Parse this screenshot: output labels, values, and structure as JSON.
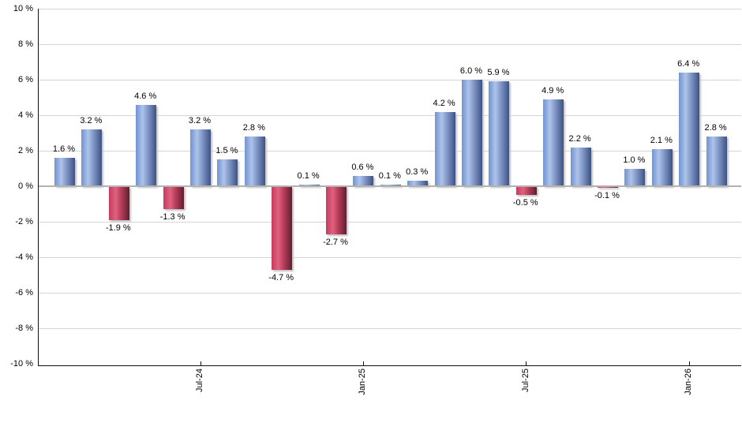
{
  "chart_data": {
    "type": "bar",
    "title": "",
    "unit": "%",
    "values": [
      1.6,
      3.2,
      -1.9,
      4.6,
      -1.3,
      3.2,
      1.5,
      2.8,
      -4.7,
      0.1,
      -2.7,
      0.6,
      0.1,
      0.3,
      4.2,
      6.0,
      5.9,
      -0.5,
      4.9,
      2.2,
      -0.1,
      1.0,
      2.1,
      6.4,
      2.8
    ],
    "value_labels": [
      "1.6 %",
      "3.2 %",
      "-1.9 %",
      "4.6 %",
      "-1.3 %",
      "3.2 %",
      "1.5 %",
      "2.8 %",
      "-4.7 %",
      "0.1 %",
      "-2.7 %",
      "0.6 %",
      "0.1 %",
      "0.3 %",
      "4.2 %",
      "6.0 %",
      "5.9 %",
      "-0.5 %",
      "4.9 %",
      "2.2 %",
      "-0.1 %",
      "1.0 %",
      "2.1 %",
      "6.4 %",
      "2.8 %"
    ],
    "x_tick_labels": [
      "Jul-24",
      "Jan-25",
      "Jul-25",
      "Jan-26"
    ],
    "x_tick_bar_indices": [
      5,
      11,
      17,
      23
    ],
    "y_tick_values": [
      10,
      8,
      6,
      4,
      2,
      0,
      -2,
      -4,
      -6,
      -8,
      -10
    ],
    "y_tick_labels": [
      "10 %",
      "8 %",
      "6 %",
      "4 %",
      "2 %",
      "0 %",
      "-2 %",
      "-4 %",
      "-6 %",
      "-8 %",
      "-10 %"
    ],
    "ylim": [
      -10,
      10
    ],
    "grid": true,
    "legend": "none",
    "colors": {
      "positive_bar_start": "#7093d2",
      "positive_bar_light": "#aec3e9",
      "positive_bar_end": "#3e5282",
      "negative_bar_start": "#c53b5e",
      "negative_bar_light": "#e2617f",
      "negative_bar_end": "#601f30",
      "gridline": "#d5d5d5",
      "zero_line": "#b2b2b2",
      "axis": "#111111",
      "label_text": "#000000"
    }
  }
}
